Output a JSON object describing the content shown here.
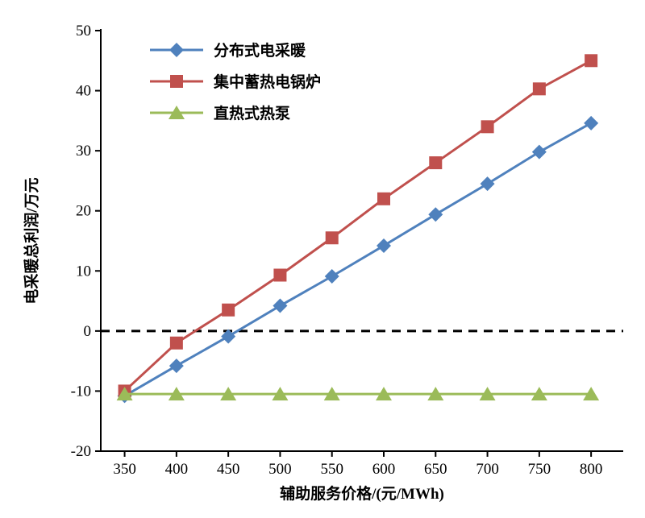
{
  "chart_data": {
    "type": "line",
    "x": [
      350,
      400,
      450,
      500,
      550,
      600,
      650,
      700,
      750,
      800
    ],
    "series": [
      {
        "name": "分布式电采暖",
        "color": "#4f81bd",
        "marker": "diamond",
        "values": [
          -10.8,
          -5.8,
          -0.9,
          4.2,
          9.1,
          14.2,
          19.4,
          24.5,
          29.8,
          34.6
        ]
      },
      {
        "name": "集中蓄热电锅炉",
        "color": "#c0504d",
        "marker": "square",
        "values": [
          -10.0,
          -2.0,
          3.5,
          9.3,
          15.5,
          22.0,
          28.0,
          34.0,
          40.3,
          45.0
        ]
      },
      {
        "name": "直热式热泵",
        "color": "#9bbb59",
        "marker": "triangle",
        "values": [
          -10.5,
          -10.5,
          -10.5,
          -10.5,
          -10.5,
          -10.5,
          -10.5,
          -10.5,
          -10.5,
          -10.5
        ]
      }
    ],
    "xlabel": "辅助服务价格/(元/MWh)",
    "ylabel": "电采暖总利润/万元",
    "xlim": [
      327,
      831
    ],
    "ylim": [
      -20,
      50
    ],
    "xticks": [
      350,
      400,
      450,
      500,
      550,
      600,
      650,
      700,
      750,
      800
    ],
    "yticks": [
      -20,
      -10,
      0,
      10,
      20,
      30,
      40,
      50
    ],
    "grid": false,
    "legend_position": "top-left",
    "zero_line": {
      "value": 0,
      "color": "#000000",
      "style": "dashed"
    },
    "axis_color": "#000000",
    "tick_label_color": "#000000"
  }
}
